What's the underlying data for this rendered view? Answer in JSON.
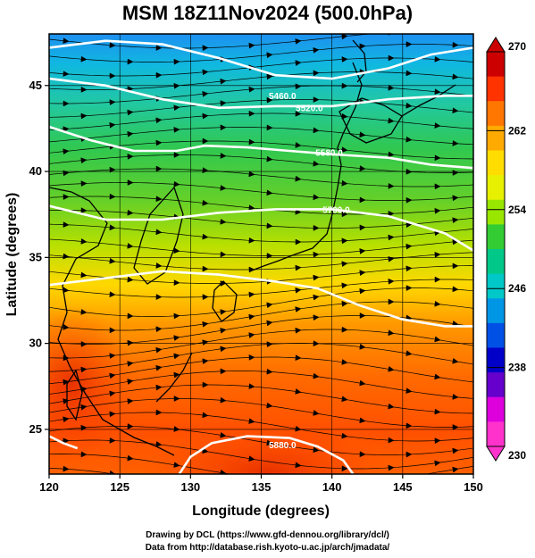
{
  "title": "MSM 18Z11Nov2024 (500.0hPa)",
  "map": {
    "lon_range": [
      120,
      150
    ],
    "lat_range": [
      22.4,
      48
    ],
    "x_ticks": [
      120,
      125,
      130,
      135,
      140,
      145,
      150
    ],
    "y_ticks": [
      25,
      30,
      35,
      40,
      45
    ],
    "xlabel": "Longitude (degrees)",
    "ylabel": "Latitude  (degrees)",
    "field": "temperature shading with wind streamlines",
    "contours": [
      {
        "label": "5460.0",
        "lon": 136.5,
        "lat": 44.2,
        "points": [
          [
            120,
            47.2
          ],
          [
            124,
            47.6
          ],
          [
            128,
            47.4
          ],
          [
            132,
            46.6
          ],
          [
            136,
            45.6
          ],
          [
            140,
            45.4
          ],
          [
            144,
            46.0
          ],
          [
            147,
            46.8
          ],
          [
            150,
            47.2
          ]
        ]
      },
      {
        "label": "5520.0",
        "lon": 138.4,
        "lat": 43.5,
        "points": [
          [
            120,
            45.4
          ],
          [
            124,
            45.0
          ],
          [
            128,
            44.2
          ],
          [
            132,
            43.7
          ],
          [
            136,
            43.8
          ],
          [
            140,
            43.8
          ],
          [
            144,
            44.2
          ],
          [
            148,
            44.4
          ],
          [
            150,
            44.4
          ]
        ]
      },
      {
        "label": "5580.0",
        "lon": 139.8,
        "lat": 40.9,
        "points": [
          [
            120,
            42.6
          ],
          [
            123,
            41.8
          ],
          [
            126,
            41.2
          ],
          [
            129,
            41.2
          ],
          [
            131,
            41.5
          ],
          [
            134,
            41.4
          ],
          [
            137,
            41.2
          ],
          [
            140,
            41.0
          ],
          [
            144,
            40.8
          ],
          [
            147,
            40.4
          ],
          [
            150,
            40.2
          ]
        ]
      },
      {
        "label": "5700.0",
        "lon": 140.3,
        "lat": 37.6,
        "points": [
          [
            120,
            38.0
          ],
          [
            124,
            37.2
          ],
          [
            128,
            37.2
          ],
          [
            132,
            37.6
          ],
          [
            136,
            37.8
          ],
          [
            140,
            37.8
          ],
          [
            144,
            37.4
          ],
          [
            148,
            36.4
          ],
          [
            150,
            35.4
          ]
        ]
      },
      {
        "label": "",
        "lon": 0,
        "lat": 0,
        "points": [
          [
            120,
            33.4
          ],
          [
            124,
            33.8
          ],
          [
            128,
            34.2
          ],
          [
            132,
            34.0
          ],
          [
            136,
            33.6
          ],
          [
            139,
            33.2
          ],
          [
            142,
            32.2
          ],
          [
            145,
            31.4
          ],
          [
            148,
            31.0
          ],
          [
            150,
            31.0
          ]
        ]
      },
      {
        "label": "5880.0",
        "lon": 136.5,
        "lat": 23.9,
        "points": [
          [
            120,
            24.6
          ],
          [
            121,
            24.2
          ],
          [
            122,
            23.9
          ]
        ]
      },
      {
        "label": "",
        "lon": 0,
        "lat": 0,
        "points": [
          [
            129.2,
            22.4
          ],
          [
            130,
            23.4
          ],
          [
            131.5,
            24.2
          ],
          [
            134,
            24.6
          ],
          [
            137,
            24.5
          ],
          [
            139,
            24.0
          ],
          [
            140.8,
            23.2
          ],
          [
            141.5,
            22.4
          ]
        ]
      }
    ],
    "contour_color": "#ffffff"
  },
  "colorbar": {
    "min": 230,
    "max": 270,
    "tick_labels": [
      "270",
      "262",
      "254",
      "246",
      "238",
      "230"
    ],
    "colors": [
      "#cc0000",
      "#ff3300",
      "#ff7700",
      "#ffaa00",
      "#ffdd00",
      "#e6f000",
      "#99e600",
      "#33cc33",
      "#00c888",
      "#00c8c8",
      "#0096e6",
      "#0050e6",
      "#0000c8",
      "#6600cc",
      "#dd00dd",
      "#ff33cc"
    ]
  },
  "credits": {
    "line1": "Drawing by DCL (https://www.gfd-dennou.org/library/dcl/)",
    "line2": "Data from http://database.rish.kyoto-u.ac.jp/arch/jmadata/"
  }
}
